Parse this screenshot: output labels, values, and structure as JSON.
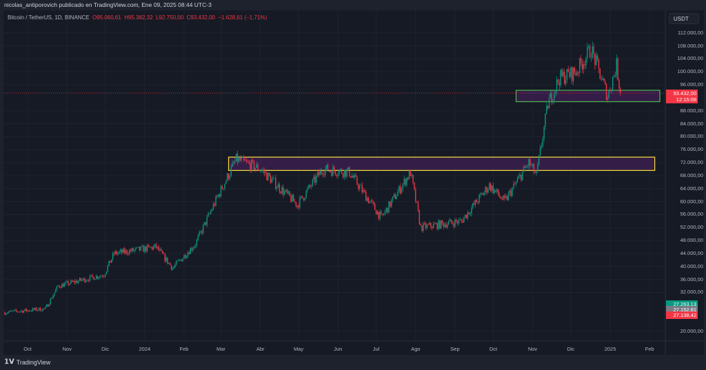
{
  "header": {
    "publisher_line": "nicolas_antiporovich publicado en TradingView.com, Ene 09, 2025 08:44 UTC-3"
  },
  "legend": {
    "symbol": "Bitcoin / TetherUS, 1D, BINANCE",
    "open": "O95.060,61",
    "high": "H95.382,32",
    "low": "L92.750,00",
    "close": "C93.432,00",
    "change": "−1.628,61 (−1,71%)"
  },
  "price_axis": {
    "currency": "USDT",
    "labels": [
      "112.000,00",
      "108.000,00",
      "104.000,00",
      "100.000,00",
      "96.000,00",
      "88.000,00",
      "84.000,00",
      "80.000,00",
      "76.000,00",
      "72.000,00",
      "68.000,00",
      "64.000,00",
      "60.000,00",
      "56.000,00",
      "52.000,00",
      "48.000,00",
      "44.000,00",
      "40.000,00",
      "36.000,00",
      "32.000,00",
      "20.000,00"
    ],
    "label_values": [
      112000,
      108000,
      104000,
      100000,
      96000,
      88000,
      84000,
      80000,
      76000,
      72000,
      68000,
      64000,
      60000,
      56000,
      52000,
      48000,
      44000,
      40000,
      36000,
      32000,
      20000
    ],
    "last_price": "93.432,00",
    "countdown": "12:15:08",
    "tags": [
      {
        "text": "27.263,13",
        "color": "#089981",
        "value": 28400
      },
      {
        "text": "27.152,81",
        "color": "#787b86",
        "value": 26800
      },
      {
        "text": "27.138,42",
        "color": "#f23645",
        "value": 25200
      }
    ]
  },
  "time_axis": {
    "labels": [
      "Oct",
      "Nov",
      "Dic",
      "2024",
      "Feb",
      "Mar",
      "Abr",
      "May",
      "Jun",
      "Jul",
      "Ago",
      "Sep",
      "Oct",
      "Nov",
      "Dic",
      "2025",
      "Feb"
    ]
  },
  "footer": {
    "brand": "TradingView"
  },
  "colors": {
    "up": "#089981",
    "down": "#f23645",
    "bg": "#161a25",
    "zone_fill": "#3a1f4d",
    "yellow_zone": "#f0d43a",
    "green_zone": "#4caf50"
  },
  "chart_data": {
    "type": "candlestick",
    "title": "Bitcoin / TetherUS, 1D, BINANCE",
    "ylim": [
      20000,
      114000
    ],
    "x_start": "2023-09-12",
    "x_end": "2025-01-09",
    "path_keypoints": [
      [
        "2023-09-12",
        25800
      ],
      [
        "2023-10-15",
        27000
      ],
      [
        "2023-10-25",
        34000
      ],
      [
        "2023-11-30",
        37500
      ],
      [
        "2023-12-08",
        44000
      ],
      [
        "2024-01-10",
        46000
      ],
      [
        "2024-01-23",
        39500
      ],
      [
        "2024-02-10",
        47000
      ],
      [
        "2024-02-28",
        62000
      ],
      [
        "2024-03-13",
        73000
      ],
      [
        "2024-04-01",
        70000
      ],
      [
        "2024-04-30",
        59000
      ],
      [
        "2024-05-20",
        70000
      ],
      [
        "2024-06-10",
        69000
      ],
      [
        "2024-07-05",
        55000
      ],
      [
        "2024-07-28",
        69000
      ],
      [
        "2024-08-05",
        52000
      ],
      [
        "2024-09-06",
        54000
      ],
      [
        "2024-09-28",
        65000
      ],
      [
        "2024-10-10",
        60000
      ],
      [
        "2024-10-29",
        72000
      ],
      [
        "2024-11-04",
        68000
      ],
      [
        "2024-11-13",
        90000
      ],
      [
        "2024-11-22",
        98000
      ],
      [
        "2024-12-05",
        100000
      ],
      [
        "2024-12-17",
        107000
      ],
      [
        "2024-12-30",
        92500
      ],
      [
        "2025-01-06",
        102000
      ],
      [
        "2025-01-09",
        93432
      ]
    ],
    "zones": [
      {
        "name": "yellow-zone",
        "from": "2024-03-07",
        "to": "2025-02-05",
        "low": 69600,
        "high": 73700,
        "border": "#f0d43a"
      },
      {
        "name": "green-zone",
        "from": "2024-10-19",
        "to": "2025-02-09",
        "low": 90800,
        "high": 94300,
        "border": "#4caf50"
      }
    ],
    "last_close": 93432
  }
}
